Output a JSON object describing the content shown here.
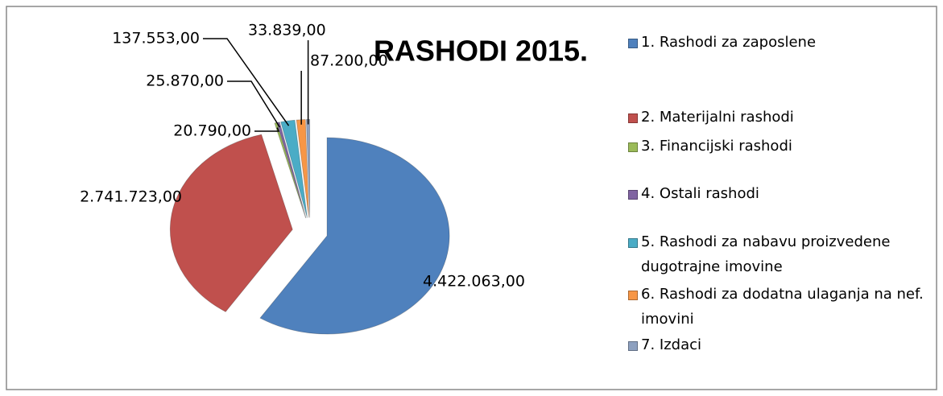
{
  "chart_data": {
    "type": "pie",
    "title": "RASHODI 2015.",
    "categories": [
      "1. Rashodi za zaposlene",
      "2. Materijalni rashodi",
      "3. Financijski rashodi",
      "4. Ostali rashodi",
      "5. Rashodi za nabavu proizvedene dugotrajne imovine",
      "6. Rashodi za dodatna ulaganja na nef. imovini",
      "7. Izdaci"
    ],
    "values": [
      4422063,
      2741723,
      20790,
      25870,
      137553,
      87200,
      33839
    ],
    "value_labels": [
      "4.422.063,00",
      "2.741.723,00",
      "20.790,00",
      "25.870,00",
      "137.553,00",
      "87.200,00",
      "33.839,00"
    ],
    "colors": [
      "#4f81bd",
      "#c0504d",
      "#9bbb59",
      "#8064a2",
      "#4bacc6",
      "#f79646",
      "#8da0bf"
    ],
    "legend": "right"
  }
}
